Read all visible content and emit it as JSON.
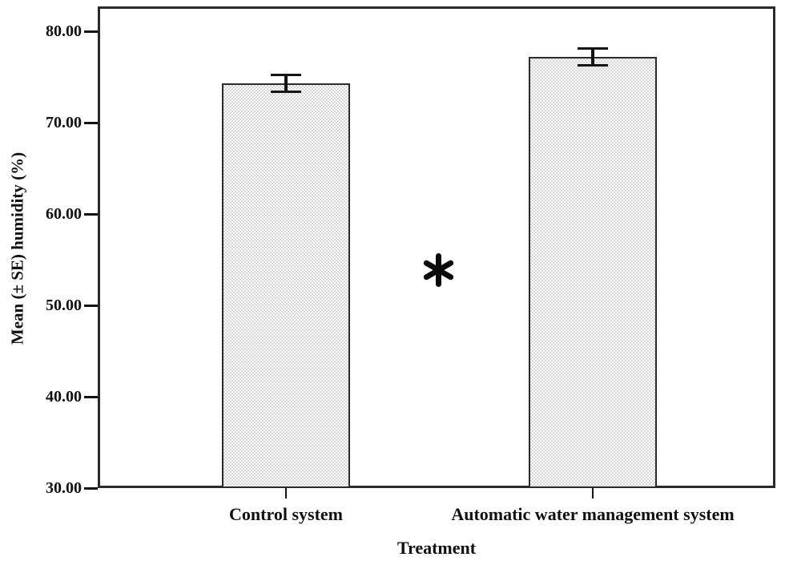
{
  "chart_data": {
    "type": "bar",
    "title": "",
    "categories": [
      "Control system",
      "Automatic water management system"
    ],
    "series": [
      {
        "name": "Mean (± SE) humidity",
        "values": [
          74.3,
          77.2
        ],
        "errors": [
          0.9,
          0.9
        ]
      }
    ],
    "xlabel": "Treatment",
    "ylabel": "Mean (± SE) humidity (%)",
    "ylim": [
      30,
      82.7
    ],
    "yticks": [
      30,
      40,
      50,
      60,
      70,
      80
    ],
    "ytick_labels": [
      "30.00",
      "40.00",
      "50.00",
      "60.00",
      "70.00",
      "80.00"
    ],
    "significance_marker": "*",
    "grid": false,
    "legend_position": "none",
    "colors": {
      "bar_fill_base": "#ffffff",
      "bar_fill_pattern": "#d4d4d4",
      "bar_border": "#2b2b2b",
      "axis": "#2a2a2a",
      "text": "#111111",
      "background": "#ffffff"
    }
  }
}
